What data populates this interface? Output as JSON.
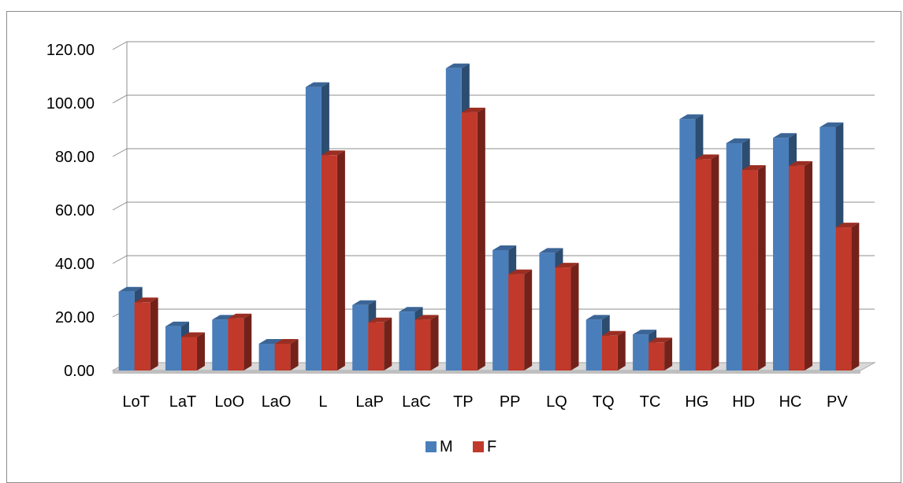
{
  "chart_data": {
    "type": "bar",
    "title": "",
    "xlabel": "",
    "ylabel": "",
    "categories": [
      "LoT",
      "LaT",
      "LoO",
      "LaO",
      "L",
      "LaP",
      "LaC",
      "TP",
      "PP",
      "LQ",
      "TQ",
      "TC",
      "HG",
      "HD",
      "HC",
      "PV"
    ],
    "series": [
      {
        "name": "M",
        "color": "#4a7ebb",
        "values": [
          29.5,
          16.5,
          19.0,
          10.0,
          106.0,
          24.5,
          22.0,
          113.0,
          45.0,
          44.0,
          19.0,
          13.5,
          94.0,
          85.0,
          87.0,
          91.0
        ]
      },
      {
        "name": "F",
        "color": "#c0392b",
        "values": [
          25.5,
          12.5,
          19.5,
          10.0,
          80.5,
          18.0,
          19.0,
          96.5,
          36.0,
          38.5,
          13.0,
          10.5,
          79.0,
          75.0,
          76.5,
          53.5
        ]
      }
    ],
    "ylim": [
      0,
      120
    ],
    "yticks": [
      "0.00",
      "20.00",
      "40.00",
      "60.00",
      "80.00",
      "100.00",
      "120.00"
    ],
    "grid": true,
    "legend_position": "bottom",
    "style": "3d-column"
  }
}
